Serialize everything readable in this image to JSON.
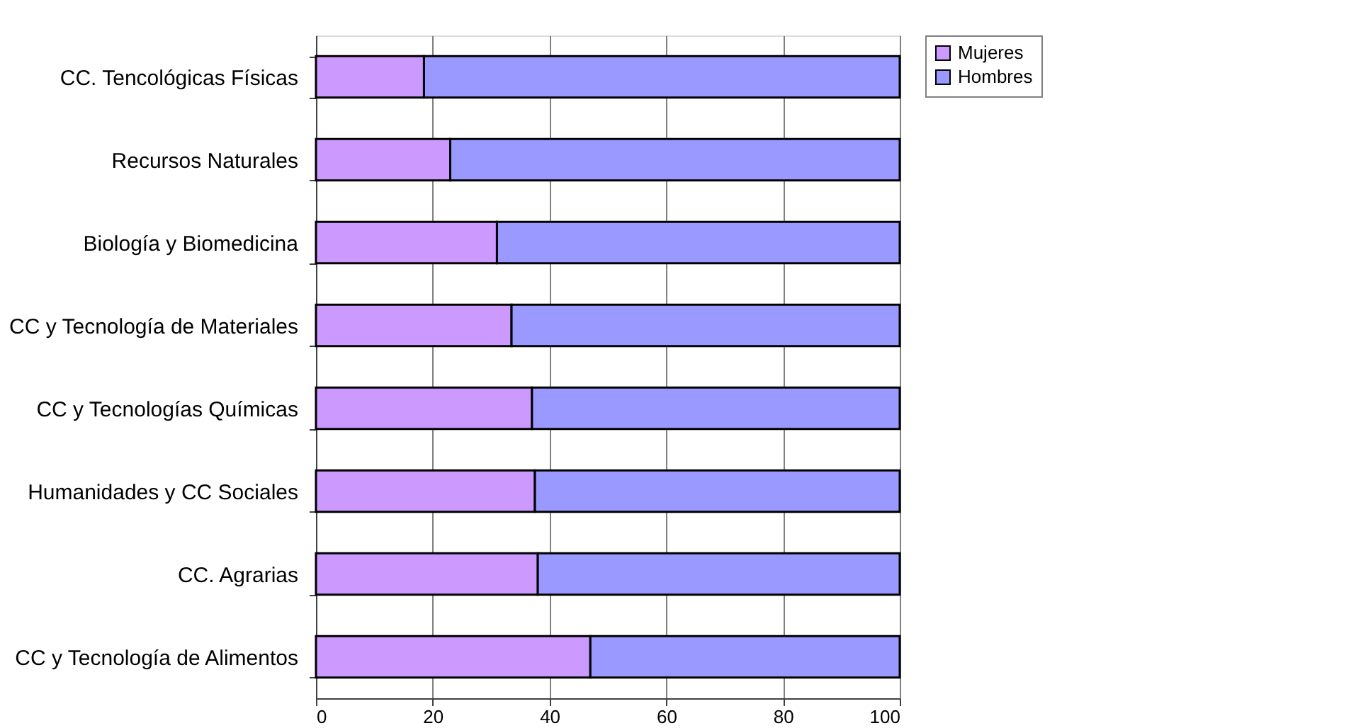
{
  "chart_data": {
    "type": "bar",
    "orientation": "horizontal",
    "stacked": true,
    "categories": [
      "CC. Tencológicas Físicas",
      "Recursos Naturales",
      "Biología y Biomedicina",
      "CC y Tecnología de Materiales",
      "CC y Tecnologías Químicas",
      "Humanidades y CC Sociales",
      "CC. Agrarias",
      "CC y Tecnología de Alimentos"
    ],
    "series": [
      {
        "name": "Mujeres",
        "color": "#cc99ff",
        "values": [
          18.5,
          23,
          31,
          33.5,
          37,
          37.5,
          38,
          47
        ]
      },
      {
        "name": "Hombres",
        "color": "#9999ff",
        "values": [
          81.5,
          77,
          69,
          66.5,
          63,
          62.5,
          62,
          53
        ]
      }
    ],
    "xlim": [
      0,
      100
    ],
    "xticks": [
      0,
      20,
      40,
      60,
      80,
      100
    ],
    "grid": "x",
    "legend": "right"
  }
}
